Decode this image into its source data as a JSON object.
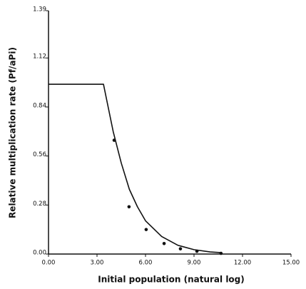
{
  "chart_data": {
    "type": "line",
    "x_label": "Initial population (natural log)",
    "y_label": "Relative multiplication rate (Pf/aPi)",
    "xlim": [
      0,
      15
    ],
    "ylim": [
      0,
      1.39
    ],
    "xticks": [
      {
        "value": 0,
        "label": "0.00"
      },
      {
        "value": 3,
        "label": "3.00"
      },
      {
        "value": 6,
        "label": "6.00"
      },
      {
        "value": 9,
        "label": "9.00"
      },
      {
        "value": 12,
        "label": "12.00"
      },
      {
        "value": 15,
        "label": "15.00"
      }
    ],
    "yticks": [
      {
        "value": 0,
        "label": "0.00"
      },
      0.28,
      0.56,
      0.84,
      1.12,
      1.39
    ],
    "color": "#111111",
    "series": [
      {
        "kind": "line",
        "x": [
          0,
          3.4,
          3.6,
          4.0,
          4.5,
          5.0,
          5.5,
          6.0,
          7.0,
          8.0,
          9.0,
          10.0,
          10.7
        ],
        "values": [
          0.97,
          0.97,
          0.88,
          0.7,
          0.52,
          0.37,
          0.27,
          0.19,
          0.1,
          0.05,
          0.025,
          0.012,
          0.008
        ]
      },
      {
        "kind": "points",
        "x": [
          4.06,
          4.98,
          6.04,
          7.15,
          8.16,
          9.18,
          10.67
        ],
        "values": [
          0.65,
          0.27,
          0.14,
          0.06,
          0.03,
          0.016,
          0.004
        ]
      }
    ]
  }
}
